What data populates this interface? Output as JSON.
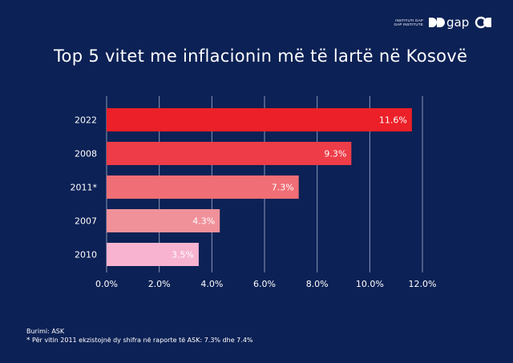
{
  "logo": {
    "line1": "INSTITUTI GAP",
    "line2": "GAP INSTITUTE",
    "wordmark": "gap"
  },
  "chart_data": {
    "type": "bar",
    "orientation": "horizontal",
    "title": "Top 5 vitet me inflacionin më të lartë në Kosovë",
    "categories": [
      "2022",
      "2008",
      "2011*",
      "2007",
      "2010"
    ],
    "values": [
      11.6,
      9.3,
      7.3,
      4.3,
      3.5
    ],
    "value_labels": [
      "11.6%",
      "9.3%",
      "7.3%",
      "4.3%",
      "3.5%"
    ],
    "bar_colors": [
      "#ec2028",
      "#ee3d48",
      "#f06e75",
      "#f0919a",
      "#f7b3cf"
    ],
    "xlim": [
      0,
      12
    ],
    "xticks": [
      0,
      2,
      4,
      6,
      8,
      10,
      12
    ],
    "xtick_labels": [
      "0.0%",
      "2.0%",
      "4.0%",
      "6.0%",
      "8.0%",
      "10.0%",
      "12.0%"
    ],
    "xlabel": "",
    "ylabel": "",
    "grid": true
  },
  "footer": {
    "source": "Burimi: ASK",
    "note_marker": "*",
    "note": "Për vitin 2011 ekzistojnë dy shifra në raporte të ASK: 7.3% dhe 7.4%"
  },
  "colors": {
    "background": "#0c2155",
    "text": "#ffffff",
    "gridline": "#8a97b8"
  }
}
